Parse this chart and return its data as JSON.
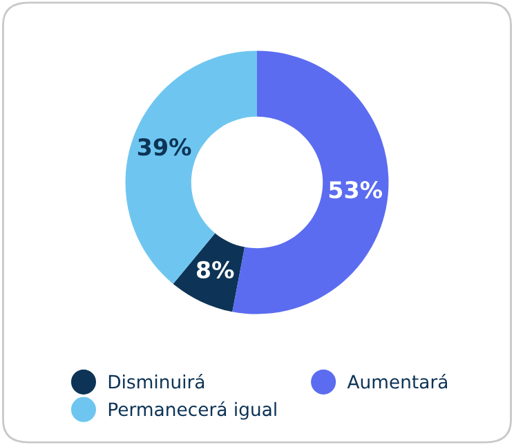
{
  "chart_data": {
    "type": "donut",
    "categories": [
      "Disminuirá",
      "Aumentará",
      "Permanecerá igual"
    ],
    "values": [
      8,
      53,
      39
    ],
    "colors": [
      "#0d3456",
      "#5b6cf0",
      "#6ec6f0"
    ],
    "value_labels": [
      "8%",
      "53%",
      "39%"
    ],
    "legend": "bottom"
  }
}
